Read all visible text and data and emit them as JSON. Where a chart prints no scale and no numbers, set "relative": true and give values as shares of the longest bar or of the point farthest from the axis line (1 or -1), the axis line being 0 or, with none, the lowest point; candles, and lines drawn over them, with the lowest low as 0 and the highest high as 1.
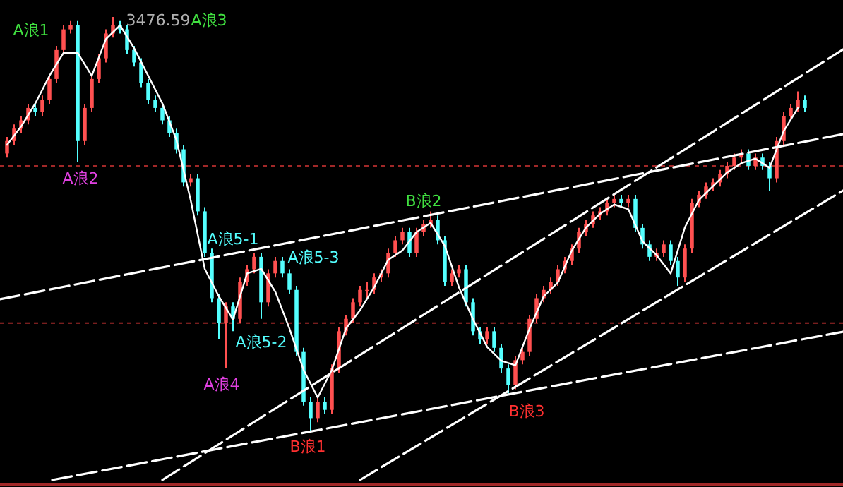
{
  "chart_data": [
    {
      "type": "candlestick",
      "relative": true,
      "categories": [
        null,
        null,
        null,
        null,
        null,
        null,
        null,
        null,
        null,
        null,
        null,
        null,
        null,
        null,
        null,
        null,
        null,
        null,
        null,
        null,
        null,
        null,
        null,
        null,
        null,
        null,
        null,
        null,
        null,
        null,
        null,
        null,
        null,
        null,
        null,
        null,
        null,
        null,
        null,
        null,
        null,
        null,
        null,
        null,
        null,
        null,
        null,
        null,
        null,
        null,
        null,
        null,
        null,
        null,
        null,
        null,
        null,
        null,
        null,
        null,
        null,
        null,
        null,
        null,
        null,
        null,
        null,
        null,
        null,
        null,
        null,
        null,
        null,
        null,
        null,
        null,
        null,
        null,
        null,
        null,
        null,
        null,
        null,
        null,
        null,
        null,
        null,
        null,
        null,
        null,
        null,
        null,
        null,
        null,
        null,
        null,
        null,
        null,
        null,
        null,
        null,
        null,
        null,
        null,
        null,
        null,
        null,
        null,
        null,
        null,
        null,
        null,
        null,
        null
      ],
      "ohlc": [
        [
          0.67,
          0.71,
          0.66,
          0.7
        ],
        [
          0.7,
          0.74,
          0.69,
          0.73
        ],
        [
          0.73,
          0.76,
          0.72,
          0.75
        ],
        [
          0.75,
          0.79,
          0.74,
          0.78
        ],
        [
          0.78,
          0.79,
          0.76,
          0.77
        ],
        [
          0.77,
          0.81,
          0.76,
          0.8
        ],
        [
          0.8,
          0.86,
          0.79,
          0.85
        ],
        [
          0.85,
          0.93,
          0.84,
          0.92
        ],
        [
          0.92,
          0.98,
          0.91,
          0.97
        ],
        [
          0.97,
          0.99,
          0.96,
          0.98
        ],
        [
          0.98,
          0.99,
          0.65,
          0.7
        ],
        [
          0.7,
          0.79,
          0.69,
          0.78
        ],
        [
          0.78,
          0.86,
          0.77,
          0.85
        ],
        [
          0.85,
          0.91,
          0.84,
          0.9
        ],
        [
          0.9,
          0.97,
          0.89,
          0.96
        ],
        [
          0.96,
          1.0,
          0.95,
          0.98
        ],
        [
          0.98,
          0.99,
          0.96,
          0.97
        ],
        [
          0.97,
          0.98,
          0.91,
          0.92
        ],
        [
          0.92,
          0.93,
          0.88,
          0.89
        ],
        [
          0.89,
          0.9,
          0.83,
          0.84
        ],
        [
          0.84,
          0.85,
          0.79,
          0.8
        ],
        [
          0.8,
          0.81,
          0.77,
          0.78
        ],
        [
          0.78,
          0.79,
          0.74,
          0.75
        ],
        [
          0.75,
          0.76,
          0.71,
          0.72
        ],
        [
          0.72,
          0.73,
          0.67,
          0.68
        ],
        [
          0.68,
          0.69,
          0.59,
          0.6
        ],
        [
          0.6,
          0.62,
          0.59,
          0.61
        ],
        [
          0.61,
          0.62,
          0.52,
          0.53
        ],
        [
          0.53,
          0.54,
          0.42,
          0.43
        ],
        [
          0.43,
          0.44,
          0.31,
          0.32
        ],
        [
          0.32,
          0.33,
          0.22,
          0.26
        ],
        [
          0.26,
          0.31,
          0.15,
          0.3
        ],
        [
          0.3,
          0.31,
          0.24,
          0.27
        ],
        [
          0.27,
          0.37,
          0.26,
          0.36
        ],
        [
          0.36,
          0.4,
          0.35,
          0.39
        ],
        [
          0.39,
          0.43,
          0.38,
          0.42
        ],
        [
          0.42,
          0.43,
          0.27,
          0.31
        ],
        [
          0.31,
          0.39,
          0.3,
          0.38
        ],
        [
          0.38,
          0.42,
          0.37,
          0.41
        ],
        [
          0.41,
          0.42,
          0.37,
          0.38
        ],
        [
          0.38,
          0.39,
          0.33,
          0.34
        ],
        [
          0.34,
          0.35,
          0.18,
          0.19
        ],
        [
          0.19,
          0.2,
          0.06,
          0.07
        ],
        [
          0.07,
          0.08,
          0.0,
          0.03
        ],
        [
          0.03,
          0.08,
          0.02,
          0.07
        ],
        [
          0.07,
          0.08,
          0.04,
          0.05
        ],
        [
          0.05,
          0.16,
          0.04,
          0.15
        ],
        [
          0.15,
          0.25,
          0.14,
          0.24
        ],
        [
          0.24,
          0.28,
          0.23,
          0.27
        ],
        [
          0.27,
          0.32,
          0.26,
          0.31
        ],
        [
          0.31,
          0.35,
          0.3,
          0.34
        ],
        [
          0.34,
          0.36,
          0.32,
          0.34
        ],
        [
          0.34,
          0.38,
          0.33,
          0.37
        ],
        [
          0.37,
          0.39,
          0.36,
          0.38
        ],
        [
          0.38,
          0.44,
          0.37,
          0.43
        ],
        [
          0.43,
          0.47,
          0.42,
          0.46
        ],
        [
          0.46,
          0.49,
          0.45,
          0.48
        ],
        [
          0.48,
          0.49,
          0.42,
          0.43
        ],
        [
          0.43,
          0.49,
          0.42,
          0.48
        ],
        [
          0.48,
          0.51,
          0.47,
          0.5
        ],
        [
          0.5,
          0.53,
          0.49,
          0.51
        ],
        [
          0.51,
          0.52,
          0.45,
          0.46
        ],
        [
          0.46,
          0.47,
          0.35,
          0.36
        ],
        [
          0.36,
          0.39,
          0.35,
          0.38
        ],
        [
          0.38,
          0.4,
          0.37,
          0.39
        ],
        [
          0.39,
          0.4,
          0.3,
          0.31
        ],
        [
          0.31,
          0.32,
          0.23,
          0.24
        ],
        [
          0.24,
          0.25,
          0.21,
          0.22
        ],
        [
          0.22,
          0.25,
          0.21,
          0.24
        ],
        [
          0.24,
          0.25,
          0.19,
          0.2
        ],
        [
          0.2,
          0.21,
          0.14,
          0.15
        ],
        [
          0.15,
          0.16,
          0.09,
          0.11
        ],
        [
          0.11,
          0.18,
          0.1,
          0.17
        ],
        [
          0.17,
          0.2,
          0.16,
          0.19
        ],
        [
          0.19,
          0.28,
          0.18,
          0.27
        ],
        [
          0.27,
          0.33,
          0.26,
          0.32
        ],
        [
          0.32,
          0.35,
          0.31,
          0.34
        ],
        [
          0.34,
          0.37,
          0.33,
          0.36
        ],
        [
          0.36,
          0.4,
          0.35,
          0.39
        ],
        [
          0.39,
          0.42,
          0.38,
          0.41
        ],
        [
          0.41,
          0.45,
          0.4,
          0.44
        ],
        [
          0.44,
          0.49,
          0.43,
          0.48
        ],
        [
          0.48,
          0.51,
          0.47,
          0.5
        ],
        [
          0.5,
          0.53,
          0.49,
          0.52
        ],
        [
          0.52,
          0.54,
          0.51,
          0.53
        ],
        [
          0.53,
          0.56,
          0.52,
          0.55
        ],
        [
          0.55,
          0.57,
          0.54,
          0.56
        ],
        [
          0.56,
          0.57,
          0.54,
          0.55
        ],
        [
          0.55,
          0.57,
          0.54,
          0.56
        ],
        [
          0.56,
          0.57,
          0.48,
          0.49
        ],
        [
          0.49,
          0.5,
          0.44,
          0.45
        ],
        [
          0.45,
          0.46,
          0.41,
          0.42
        ],
        [
          0.42,
          0.44,
          0.41,
          0.43
        ],
        [
          0.43,
          0.46,
          0.42,
          0.45
        ],
        [
          0.45,
          0.46,
          0.4,
          0.41
        ],
        [
          0.41,
          0.42,
          0.35,
          0.37
        ],
        [
          0.37,
          0.45,
          0.36,
          0.44
        ],
        [
          0.44,
          0.56,
          0.43,
          0.55
        ],
        [
          0.55,
          0.58,
          0.54,
          0.57
        ],
        [
          0.57,
          0.6,
          0.56,
          0.59
        ],
        [
          0.59,
          0.61,
          0.58,
          0.6
        ],
        [
          0.6,
          0.63,
          0.59,
          0.62
        ],
        [
          0.62,
          0.65,
          0.61,
          0.64
        ],
        [
          0.64,
          0.67,
          0.63,
          0.66
        ],
        [
          0.66,
          0.68,
          0.65,
          0.67
        ],
        [
          0.67,
          0.68,
          0.63,
          0.64
        ],
        [
          0.64,
          0.67,
          0.63,
          0.66
        ],
        [
          0.66,
          0.67,
          0.63,
          0.64
        ],
        [
          0.64,
          0.65,
          0.58,
          0.61
        ],
        [
          0.61,
          0.71,
          0.6,
          0.7
        ],
        [
          0.7,
          0.77,
          0.69,
          0.76
        ],
        [
          0.76,
          0.79,
          0.75,
          0.78
        ],
        [
          0.78,
          0.82,
          0.77,
          0.8
        ],
        [
          0.8,
          0.81,
          0.77,
          0.78
        ]
      ],
      "colors": [
        "#ff5050",
        "#ff5050",
        "#ff5050",
        "#ff5050",
        "#54ffff",
        "#ff5050",
        "#ff5050",
        "#ff5050",
        "#ff5050",
        "#ff5050",
        "#54ffff",
        "#ff5050",
        "#ff5050",
        "#ff5050",
        "#ff5050",
        "#ff5050",
        "#54ffff",
        "#54ffff",
        "#54ffff",
        "#54ffff",
        "#54ffff",
        "#54ffff",
        "#54ffff",
        "#54ffff",
        "#54ffff",
        "#54ffff",
        "#ff5050",
        "#54ffff",
        "#54ffff",
        "#54ffff",
        "#54ffff",
        "#ff5050",
        "#54ffff",
        "#ff5050",
        "#ff5050",
        "#ff5050",
        "#54ffff",
        "#ff5050",
        "#ff5050",
        "#54ffff",
        "#54ffff",
        "#54ffff",
        "#54ffff",
        "#54ffff",
        "#ff5050",
        "#54ffff",
        "#ff5050",
        "#ff5050",
        "#ff5050",
        "#ff5050",
        "#ff5050",
        "#ff5050",
        "#ff5050",
        "#ff5050",
        "#ff5050",
        "#ff5050",
        "#ff5050",
        "#54ffff",
        "#ff5050",
        "#ff5050",
        "#ff5050",
        "#54ffff",
        "#54ffff",
        "#ff5050",
        "#ff5050",
        "#54ffff",
        "#54ffff",
        "#54ffff",
        "#ff5050",
        "#54ffff",
        "#54ffff",
        "#54ffff",
        "#ff5050",
        "#ff5050",
        "#ff5050",
        "#ff5050",
        "#ff5050",
        "#ff5050",
        "#ff5050",
        "#ff5050",
        "#ff5050",
        "#ff5050",
        "#ff5050",
        "#ff5050",
        "#ff5050",
        "#ff5050",
        "#ff5050",
        "#54ffff",
        "#ff5050",
        "#54ffff",
        "#54ffff",
        "#54ffff",
        "#ff5050",
        "#ff5050",
        "#54ffff",
        "#54ffff",
        "#ff5050",
        "#ff5050",
        "#ff5050",
        "#ff5050",
        "#ff5050",
        "#ff5050",
        "#ff5050",
        "#ff5050",
        "#ff5050",
        "#54ffff",
        "#ff5050",
        "#54ffff",
        "#54ffff",
        "#ff5050",
        "#ff5050",
        "#ff5050",
        "#ff5050",
        "#54ffff"
      ],
      "ref_lines": [
        {
          "axis": "y",
          "value": 0.64,
          "color": "#a02828",
          "line_style": "dashed"
        },
        {
          "axis": "y",
          "value": 0.26,
          "color": "#a02828",
          "line_style": "dashed"
        }
      ],
      "annotations": [
        "A浪1",
        "3476.59",
        "A浪3",
        "A浪2",
        "A浪5-1",
        "A浪5-3",
        "A浪5-2",
        "A浪4",
        "B浪2",
        "B浪1",
        "B浪3"
      ]
    },
    {
      "type": "line",
      "relative": true,
      "categories": [
        null,
        null,
        null,
        null,
        null,
        null,
        null,
        null,
        null,
        null,
        null,
        null,
        null,
        null,
        null,
        null,
        null,
        null,
        null,
        null,
        null,
        null,
        null,
        null,
        null,
        null,
        null,
        null,
        null,
        null,
        null,
        null,
        null,
        null,
        null,
        null,
        null,
        null,
        null,
        null,
        null,
        null,
        null,
        null,
        null,
        null,
        null,
        null,
        null,
        null,
        null,
        null,
        null,
        null,
        null,
        null,
        null
      ],
      "series": [
        {
          "color": "#ffffff",
          "line_style": "solid",
          "values": [
            0.74,
            0.78,
            0.83,
            0.89,
            0.94,
            0.94,
            0.89,
            0.97,
            1.0,
            0.95,
            0.89,
            0.83,
            0.75,
            0.62,
            0.47,
            0.41,
            0.36,
            0.46,
            0.47,
            0.42,
            0.34,
            0.25,
            0.19,
            0.25,
            0.34,
            0.38,
            0.43,
            0.49,
            0.51,
            0.55,
            0.57,
            0.52,
            0.43,
            0.36,
            0.3,
            0.27,
            0.26,
            0.34,
            0.41,
            0.44,
            0.51,
            0.56,
            0.59,
            0.61,
            0.6,
            0.53,
            0.5,
            0.46,
            0.56,
            0.62,
            0.65,
            0.68,
            0.7,
            0.71,
            0.69,
            0.77,
            0.82
          ]
        }
      ]
    },
    {
      "type": "line",
      "relative": true,
      "categories": [
        null,
        null
      ],
      "series": [
        {
          "color": "#ffffff",
          "line_style": "dashed",
          "values": [
            0,
            1
          ]
        }
      ]
    },
    {
      "type": "line",
      "relative": true,
      "categories": [
        null,
        null
      ],
      "series": [
        {
          "color": "#ffffff",
          "line_style": "dashed",
          "values": [
            0,
            1
          ]
        }
      ]
    },
    {
      "type": "line",
      "relative": true,
      "categories": [
        null,
        null
      ],
      "series": [
        {
          "color": "#ffffff",
          "line_style": "dashed",
          "values": [
            0,
            1
          ]
        }
      ]
    },
    {
      "type": "line",
      "relative": true,
      "categories": [
        null,
        null
      ],
      "series": [
        {
          "color": "#ffffff",
          "line_style": "dashed",
          "values": [
            0,
            1
          ]
        }
      ]
    }
  ]
}
